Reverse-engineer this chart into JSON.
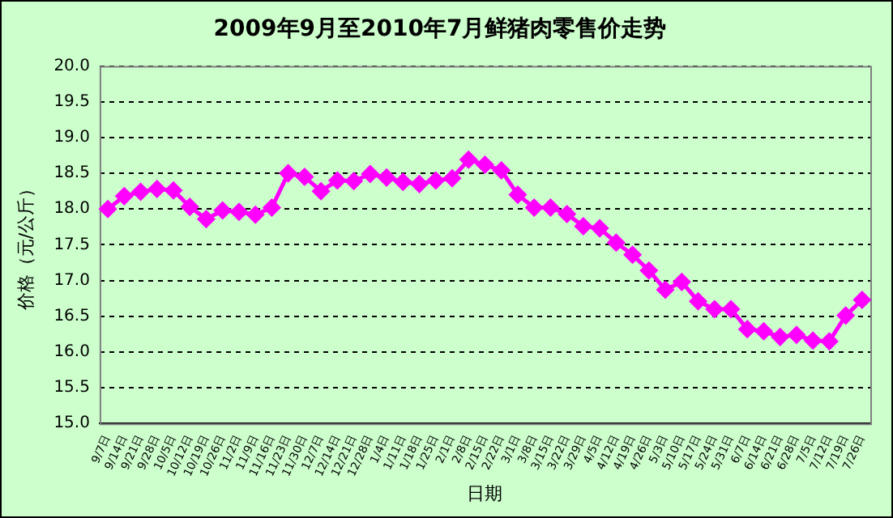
{
  "chart_data": {
    "type": "line",
    "title": "2009年9月至2010年7月鲜猪肉零售价走势",
    "xlabel": "日期",
    "ylabel": "价格（元/公斤）",
    "categories": [
      "9/7日",
      "9/14日",
      "9/21日",
      "9/28日",
      "10/5日",
      "10/12日",
      "10/19日",
      "10/26日",
      "11/2日",
      "11/9日",
      "11/16日",
      "11/23日",
      "11/30日",
      "12/7日",
      "12/14日",
      "12/21日",
      "12/28日",
      "1/4日",
      "1/11日",
      "1/18日",
      "1/25日",
      "2/1日",
      "2/8日",
      "2/15日",
      "2/22日",
      "3/1日",
      "3/8日",
      "3/15日",
      "3/22日",
      "3/29日",
      "4/5日",
      "4/12日",
      "4/19日",
      "4/26日",
      "5/3日",
      "5/10日",
      "5/17日",
      "5/24日",
      "5/31日",
      "6/7日",
      "6/14日",
      "6/21日",
      "6/28日",
      "7/5日",
      "7/12日",
      "7/19日",
      "7/26日"
    ],
    "series": [
      {
        "color": "#ff00ff",
        "values": [
          18.0,
          18.18,
          18.24,
          18.28,
          18.26,
          18.03,
          17.86,
          17.98,
          17.96,
          17.92,
          18.02,
          18.5,
          18.45,
          18.25,
          18.4,
          18.39,
          18.49,
          18.44,
          18.38,
          18.35,
          18.4,
          18.43,
          18.69,
          18.62,
          18.54,
          18.2,
          18.02,
          18.02,
          17.93,
          17.76,
          17.73,
          17.53,
          17.36,
          17.14,
          16.87,
          16.98,
          16.71,
          16.6,
          16.6,
          16.32,
          16.29,
          16.21,
          16.24,
          16.16,
          16.15,
          16.51,
          16.73
        ]
      }
    ],
    "ylim": [
      15,
      20
    ],
    "yticks": [
      {
        "value": 15,
        "label": "15.0"
      },
      {
        "value": 15.5,
        "label": "15.5"
      },
      {
        "value": 16,
        "label": "16.0"
      },
      {
        "value": 16.5,
        "label": "16.5"
      },
      {
        "value": 17,
        "label": "17.0"
      },
      {
        "value": 17.5,
        "label": "17.5"
      },
      {
        "value": 18,
        "label": "18.0"
      },
      {
        "value": 18.5,
        "label": "18.5"
      },
      {
        "value": 19,
        "label": "19.0"
      },
      {
        "value": 19.5,
        "label": "19.5"
      },
      {
        "value": 20,
        "label": "20.0"
      }
    ],
    "grid": "y",
    "legend": false,
    "marker": "diamond",
    "line_style": "solid"
  }
}
